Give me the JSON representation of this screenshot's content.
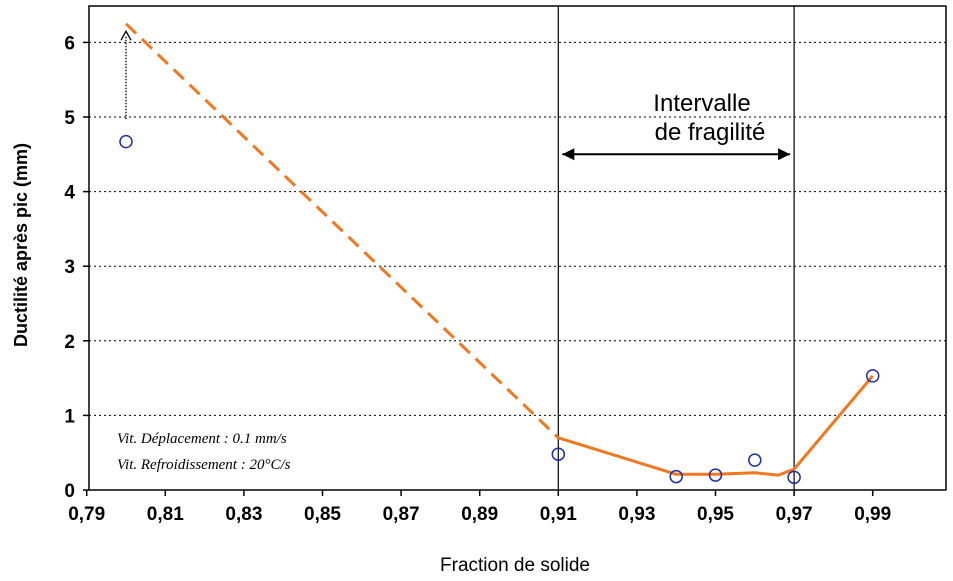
{
  "chart_data": {
    "type": "scatter",
    "title": "",
    "xlabel": "Fraction de solide",
    "ylabel": "Ductilité après pic (mm)",
    "xlim": [
      0.78,
      1.0
    ],
    "ylim": [
      0,
      6.5
    ],
    "x_ticks": [
      "0,79",
      "0,81",
      "0,83",
      "0,85",
      "0,87",
      "0,89",
      "0,91",
      "0,93",
      "0,95",
      "0,97",
      "0,99"
    ],
    "x_tick_values": [
      0.79,
      0.81,
      0.83,
      0.85,
      0.87,
      0.89,
      0.91,
      0.93,
      0.95,
      0.97,
      0.99
    ],
    "y_ticks": [
      "0",
      "1",
      "2",
      "3",
      "4",
      "5",
      "6"
    ],
    "y_tick_values": [
      0,
      1,
      2,
      3,
      4,
      5,
      6
    ],
    "grid": "horizontal dotted",
    "series": [
      {
        "type": "scatter",
        "marker": "open-circle",
        "color": "#1f2fa8",
        "points": [
          {
            "x": 0.8,
            "y": 4.67
          },
          {
            "x": 0.91,
            "y": 0.48
          },
          {
            "x": 0.94,
            "y": 0.18
          },
          {
            "x": 0.95,
            "y": 0.2
          },
          {
            "x": 0.96,
            "y": 0.4
          },
          {
            "x": 0.97,
            "y": 0.17
          },
          {
            "x": 0.99,
            "y": 1.53
          }
        ]
      },
      {
        "type": "line",
        "style": "dashed",
        "color": "#f07820",
        "points": [
          {
            "x": 0.8,
            "y": 6.25
          },
          {
            "x": 0.91,
            "y": 0.7
          }
        ]
      },
      {
        "type": "line",
        "style": "solid",
        "color": "#f07820",
        "points": [
          {
            "x": 0.91,
            "y": 0.7
          },
          {
            "x": 0.94,
            "y": 0.21
          },
          {
            "x": 0.95,
            "y": 0.21
          },
          {
            "x": 0.96,
            "y": 0.23
          },
          {
            "x": 0.966,
            "y": 0.2
          },
          {
            "x": 0.97,
            "y": 0.28
          },
          {
            "x": 0.99,
            "y": 1.53
          }
        ]
      }
    ],
    "vertical_lines": [
      0.91,
      0.97
    ],
    "arrow_up": {
      "x": 0.8,
      "y_from": 4.97,
      "y_to": 6.15
    },
    "interval_arrow": {
      "x_from": 0.91,
      "x_to": 0.97,
      "y": 4.5
    },
    "annotations": {
      "interval_line1": "Intervalle",
      "interval_line2": "de fragilité",
      "note_line1": "Vit. Déplacement : 0.1 mm/s",
      "note_line2": "Vit. Refroidissement : 20°C/s"
    }
  }
}
